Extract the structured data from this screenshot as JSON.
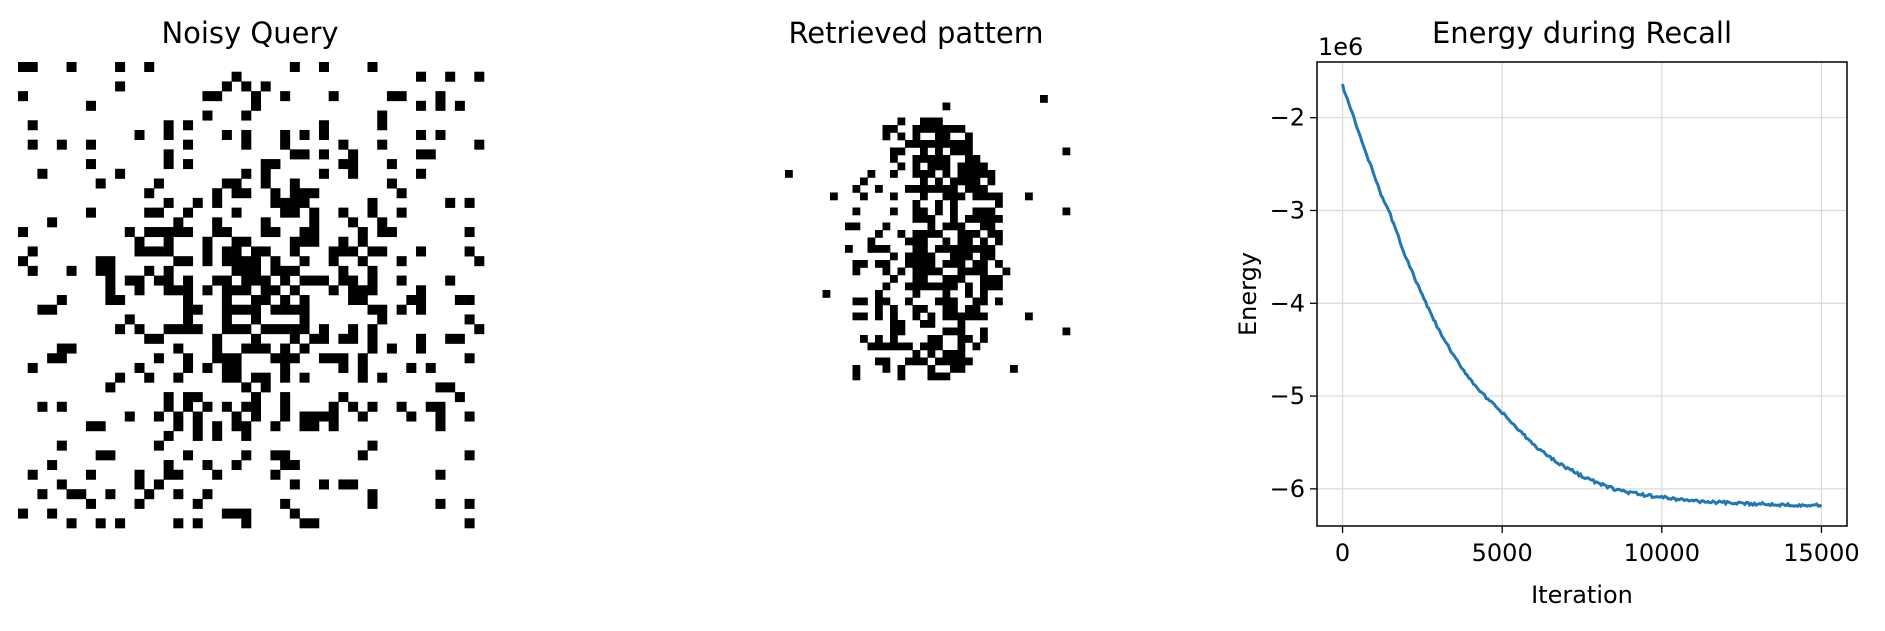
{
  "panels": {
    "noisy": {
      "title": "Noisy Query",
      "grid_size": [
        48,
        48
      ]
    },
    "retrieved": {
      "title": "Retrieved pattern",
      "grid_size": [
        48,
        48
      ]
    }
  },
  "chart_data": [
    {
      "type": "heatmap",
      "title": "Noisy Query",
      "description_values": "binary 48x48 pixel pattern with heavy random noise; black = -1, white = +1"
    },
    {
      "type": "heatmap",
      "title": "Retrieved pattern",
      "description_values": "binary 48x48 pixel pattern recalled by network; black = -1, white = +1"
    },
    {
      "type": "line",
      "title": "Energy during Recall",
      "xlabel": "Iteration",
      "ylabel": "Energy",
      "y_offset_label": "1e6",
      "x_ticks": [
        "0",
        "5000",
        "10000",
        "15000"
      ],
      "y_ticks": [
        "−2",
        "−3",
        "−4",
        "−5",
        "−6"
      ],
      "xlim": [
        -800,
        15800
      ],
      "ylim": [
        -6.4,
        -1.4
      ],
      "grid": true,
      "series": [
        {
          "color": "#1f77b4",
          "x": [
            0,
            200,
            400,
            600,
            800,
            1000,
            1200,
            1500,
            2000,
            2500,
            3000,
            3500,
            4000,
            4500,
            5000,
            5500,
            6000,
            6500,
            7000,
            7500,
            8000,
            8500,
            9000,
            9500,
            10000,
            10500,
            11000,
            11500,
            12000,
            12500,
            13000,
            13500,
            14000,
            14500,
            15000
          ],
          "y": [
            -1.65,
            -1.85,
            -2.05,
            -2.25,
            -2.45,
            -2.62,
            -2.82,
            -3.05,
            -3.52,
            -3.92,
            -4.28,
            -4.58,
            -4.82,
            -5.02,
            -5.18,
            -5.36,
            -5.53,
            -5.66,
            -5.77,
            -5.86,
            -5.94,
            -6.0,
            -6.04,
            -6.07,
            -6.09,
            -6.11,
            -6.13,
            -6.14,
            -6.15,
            -6.16,
            -6.16,
            -6.17,
            -6.17,
            -6.175,
            -6.18
          ]
        }
      ]
    }
  ]
}
